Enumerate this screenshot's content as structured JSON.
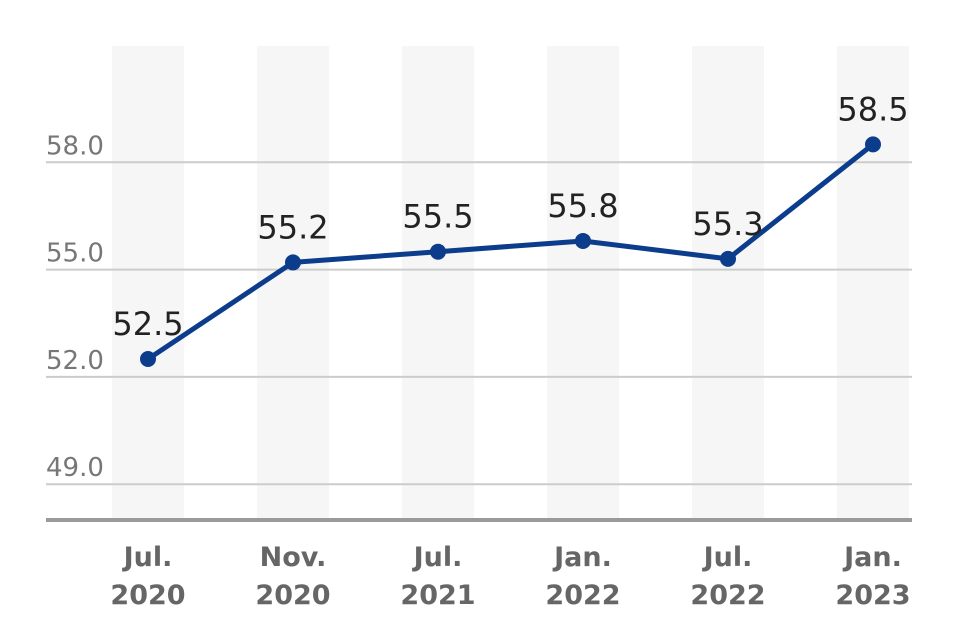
{
  "chart_data": {
    "type": "line",
    "title": "",
    "xlabel": "",
    "ylabel": "",
    "categories": [
      [
        "Jul.",
        "2020"
      ],
      [
        "Nov.",
        "2020"
      ],
      [
        "Jul.",
        "2021"
      ],
      [
        "Jan.",
        "2022"
      ],
      [
        "Jul.",
        "2022"
      ],
      [
        "Jan.",
        "2023"
      ]
    ],
    "series": [
      {
        "values": [
          52.5,
          55.2,
          55.5,
          55.8,
          55.3,
          58.5
        ],
        "labels": [
          "52.5",
          "55.2",
          "55.5",
          "55.8",
          "55.3",
          "58.5"
        ]
      }
    ],
    "yticks": [
      49,
      52,
      55,
      58
    ],
    "ytick_labels": [
      "49.0",
      "52.0",
      "55.0",
      "58.0"
    ],
    "ylim": [
      48,
      61.25
    ],
    "grid": true,
    "legend": "none",
    "colors": {
      "line": "#0b3d8c",
      "column_band": "#f6f6f6",
      "gridline": "#cccccc",
      "baseline": "#9a9a9a"
    }
  }
}
